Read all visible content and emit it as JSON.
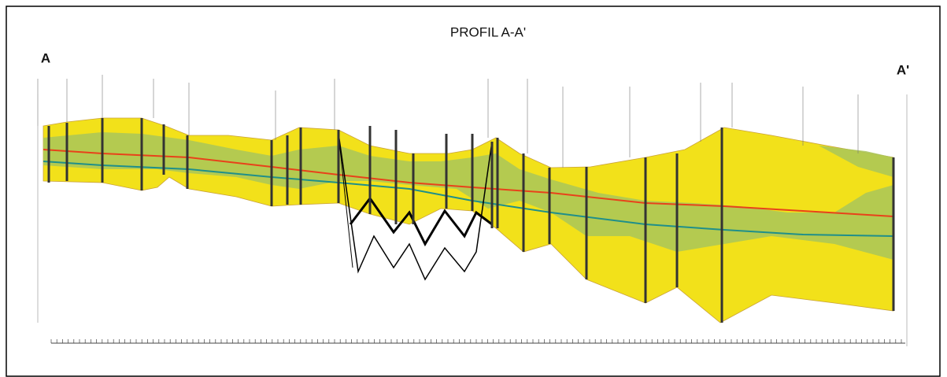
{
  "header": {
    "title": "PROFIL A-A'"
  },
  "profile": {
    "start_label": "A",
    "end_label": "A'"
  }
}
